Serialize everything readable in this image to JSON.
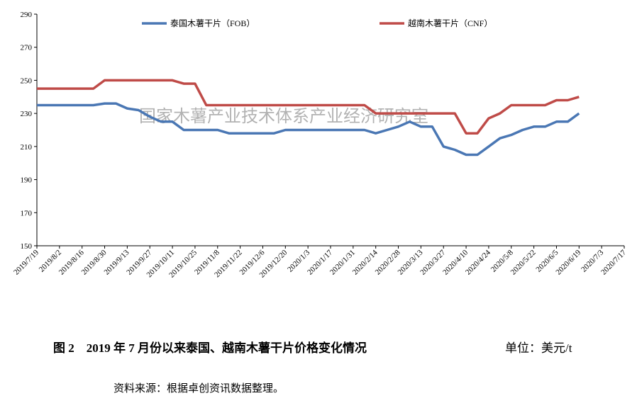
{
  "chart_data": {
    "type": "line",
    "categories": [
      "2019/7/19",
      null,
      "2019/8/2",
      null,
      "2019/8/16",
      null,
      "2019/8/30",
      null,
      "2019/9/13",
      null,
      "2019/9/27",
      null,
      "2019/10/11",
      null,
      "2019/10/25",
      null,
      "2019/11/8",
      null,
      "2019/11/22",
      null,
      "2019/12/6",
      null,
      "2019/12/20",
      null,
      "2020/1/3",
      null,
      "2020/1/17",
      null,
      "2020/1/31",
      null,
      "2020/2/14",
      null,
      "2020/2/28",
      null,
      "2020/3/13",
      null,
      "2020/3/27",
      null,
      "2020/4/10",
      null,
      "2020/4/24",
      null,
      "2020/5/8",
      null,
      "2020/5/22",
      null,
      "2020/6/5",
      null,
      "2020/6/19",
      null,
      "2020/7/3",
      null,
      "2020/7/17"
    ],
    "series": [
      {
        "name": "泰国木薯干片（FOB）",
        "color": "#4a77b4",
        "values": [
          235,
          235,
          235,
          235,
          235,
          235,
          236,
          236,
          233,
          232,
          228,
          225,
          225,
          220,
          220,
          220,
          220,
          218,
          218,
          218,
          218,
          218,
          220,
          220,
          220,
          220,
          220,
          220,
          220,
          220,
          218,
          220,
          222,
          225,
          222,
          222,
          210,
          208,
          205,
          205,
          210,
          215,
          217,
          220,
          222,
          222,
          225,
          225,
          230,
          null,
          null,
          null,
          null
        ]
      },
      {
        "name": "越南木薯干片（CNF）",
        "color": "#bf4b48",
        "values": [
          245,
          245,
          245,
          245,
          245,
          245,
          250,
          250,
          250,
          250,
          250,
          250,
          250,
          248,
          248,
          235,
          235,
          235,
          235,
          235,
          235,
          235,
          235,
          235,
          235,
          235,
          235,
          235,
          235,
          235,
          230,
          230,
          230,
          230,
          230,
          230,
          230,
          230,
          218,
          218,
          227,
          230,
          235,
          235,
          235,
          235,
          238,
          238,
          240,
          null,
          null,
          null,
          null
        ]
      }
    ],
    "ylim": [
      150,
      290
    ],
    "yticks": [
      150,
      170,
      190,
      210,
      230,
      250,
      270,
      290
    ],
    "watermark": "国家木薯产业技术体系产业经济研究室",
    "caption": "图 2　2019 年 7 月份以来泰国、越南木薯干片价格变化情况",
    "unit": "单位：美元/t",
    "source": "资料来源：根据卓创资讯数据整理。"
  }
}
